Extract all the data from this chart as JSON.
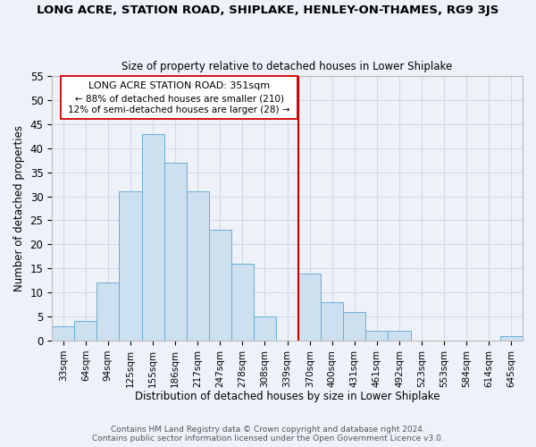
{
  "title": "LONG ACRE, STATION ROAD, SHIPLAKE, HENLEY-ON-THAMES, RG9 3JS",
  "subtitle": "Size of property relative to detached houses in Lower Shiplake",
  "xlabel": "Distribution of detached houses by size in Lower Shiplake",
  "ylabel": "Number of detached properties",
  "categories": [
    "33sqm",
    "64sqm",
    "94sqm",
    "125sqm",
    "155sqm",
    "186sqm",
    "217sqm",
    "247sqm",
    "278sqm",
    "308sqm",
    "339sqm",
    "370sqm",
    "400sqm",
    "431sqm",
    "461sqm",
    "492sqm",
    "523sqm",
    "553sqm",
    "584sqm",
    "614sqm",
    "645sqm"
  ],
  "values": [
    3,
    4,
    12,
    31,
    43,
    37,
    31,
    23,
    16,
    5,
    0,
    14,
    8,
    6,
    2,
    2,
    0,
    0,
    0,
    0,
    1
  ],
  "bar_color": "#cde0f0",
  "bar_edge_color": "#6aaed6",
  "reference_line_color": "#cc0000",
  "ylim": [
    0,
    55
  ],
  "yticks": [
    0,
    5,
    10,
    15,
    20,
    25,
    30,
    35,
    40,
    45,
    50,
    55
  ],
  "bg_color": "#eef2f8",
  "grid_color": "#d0d8e8",
  "annotation_title": "LONG ACRE STATION ROAD: 351sqm",
  "annotation_line1": "← 88% of detached houses are smaller (210)",
  "annotation_line2": "12% of semi-detached houses are larger (28) →",
  "footer_line1": "Contains HM Land Registry data © Crown copyright and database right 2024.",
  "footer_line2": "Contains public sector information licensed under the Open Government Licence v3.0."
}
